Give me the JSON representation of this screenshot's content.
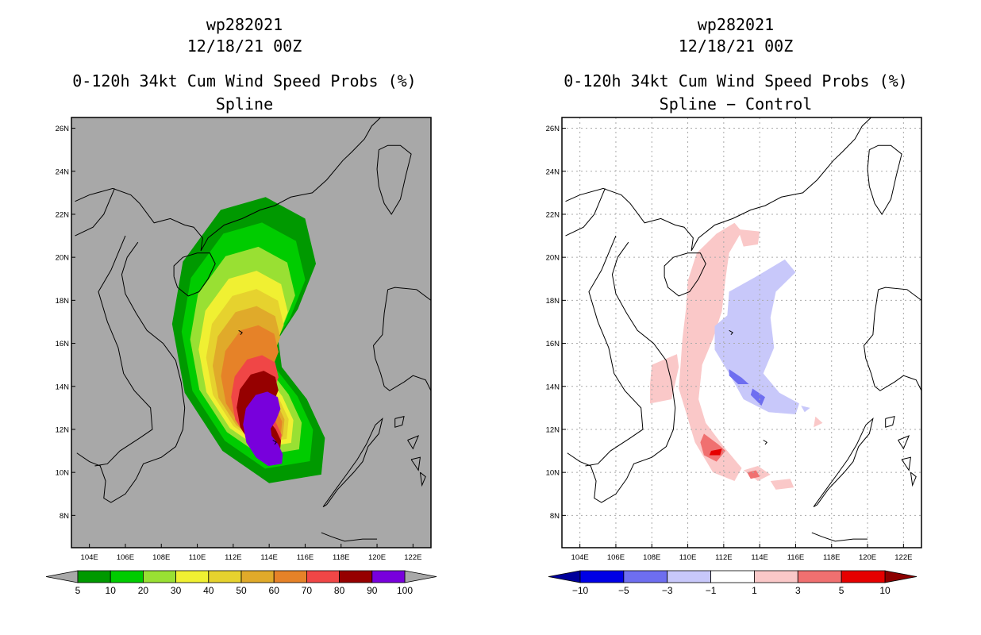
{
  "left_panel": {
    "storm_id": "wp282021",
    "datetime": "12/18/21 00Z",
    "product": "0-120h 34kt Cum Wind Speed Probs (%)",
    "subtitle": "Spline"
  },
  "right_panel": {
    "storm_id": "wp282021",
    "datetime": "12/18/21 00Z",
    "product": "0-120h 34kt Cum Wind Speed Probs (%)",
    "subtitle": "Spline − Control"
  },
  "chart_data": [
    {
      "type": "heatmap",
      "title": "0-120h 34kt Cum Wind Speed Probs (%)",
      "subtitle": "Spline",
      "background_color": "#a8a8a8",
      "xlim": [
        103,
        123
      ],
      "ylim": [
        6.5,
        26.5
      ],
      "x_ticks": [
        104,
        106,
        108,
        110,
        112,
        114,
        116,
        118,
        120,
        122
      ],
      "x_tick_labels": [
        "104E",
        "106E",
        "108E",
        "110E",
        "112E",
        "114E",
        "116E",
        "118E",
        "120E",
        "122E"
      ],
      "y_ticks": [
        8,
        10,
        12,
        14,
        16,
        18,
        20,
        22,
        24,
        26
      ],
      "y_tick_labels": [
        "8N",
        "10N",
        "12N",
        "14N",
        "16N",
        "18N",
        "20N",
        "22N",
        "24N",
        "26N"
      ],
      "grid": false,
      "colorbar": {
        "labels": [
          "5",
          "10",
          "20",
          "30",
          "40",
          "50",
          "60",
          "70",
          "80",
          "90",
          "100"
        ],
        "colors": [
          "#009900",
          "#00cc00",
          "#99e033",
          "#f0f032",
          "#e6d22e",
          "#e0aa2a",
          "#e68228",
          "#f04646",
          "#960000",
          "#7800dc"
        ],
        "left_arrow": "#a8a8a8",
        "right_arrow": "#a8a8a8"
      },
      "contours": [
        {
          "level": 5,
          "color": "#009900",
          "center": [
            113.8,
            17.2
          ],
          "scale": 1.0
        },
        {
          "level": 10,
          "color": "#00cc00",
          "center": [
            113.6,
            16.8
          ],
          "scale": 0.86
        },
        {
          "level": 20,
          "color": "#99e033",
          "center": [
            113.4,
            16.4
          ],
          "scale": 0.73
        },
        {
          "level": 30,
          "color": "#f0f032",
          "center": [
            113.3,
            15.9
          ],
          "scale": 0.62
        },
        {
          "level": 40,
          "color": "#e6d22e",
          "center": [
            113.3,
            15.5
          ],
          "scale": 0.54
        },
        {
          "level": 50,
          "color": "#e0aa2a",
          "center": [
            113.3,
            15.1
          ],
          "scale": 0.47
        },
        {
          "level": 60,
          "color": "#e68228",
          "center": [
            113.4,
            14.6
          ],
          "scale": 0.4
        },
        {
          "level": 70,
          "color": "#f04646",
          "center": [
            113.6,
            13.6
          ],
          "scale": 0.33
        },
        {
          "level": 80,
          "color": "#960000",
          "center": [
            113.7,
            13.1
          ],
          "scale": 0.29
        },
        {
          "level": 90,
          "color": "#7800dc",
          "center": [
            113.9,
            12.3
          ],
          "scale": 0.26
        }
      ]
    },
    {
      "type": "heatmap",
      "title": "0-120h 34kt Cum Wind Speed Probs (%)",
      "subtitle": "Spline − Control",
      "background_color": "#ffffff",
      "xlim": [
        103,
        123
      ],
      "ylim": [
        6.5,
        26.5
      ],
      "x_ticks": [
        104,
        106,
        108,
        110,
        112,
        114,
        116,
        118,
        120,
        122
      ],
      "x_tick_labels": [
        "104E",
        "106E",
        "108E",
        "110E",
        "112E",
        "114E",
        "116E",
        "118E",
        "120E",
        "122E"
      ],
      "y_ticks": [
        8,
        10,
        12,
        14,
        16,
        18,
        20,
        22,
        24,
        26
      ],
      "y_tick_labels": [
        "8N",
        "10N",
        "12N",
        "14N",
        "16N",
        "18N",
        "20N",
        "22N",
        "24N",
        "26N"
      ],
      "grid": true,
      "colorbar": {
        "labels": [
          "−10",
          "−5",
          "−3",
          "−1",
          "1",
          "3",
          "5",
          "10"
        ],
        "colors": [
          "#0000e6",
          "#6e6ef0",
          "#c8c8fa",
          "#ffffff",
          "#fac8c8",
          "#f07070",
          "#e60000"
        ],
        "left_arrow": "#00009b",
        "right_arrow": "#8c0000"
      },
      "contours": [
        {
          "level": 1,
          "color": "#fac8c8",
          "points": [
            [
              110.5,
              20.2
            ],
            [
              111.6,
              21.1
            ],
            [
              112.6,
              21.6
            ],
            [
              113.0,
              21.2
            ],
            [
              112.3,
              20.2
            ],
            [
              112.1,
              19.0
            ],
            [
              111.9,
              17.5
            ],
            [
              111.4,
              16.2
            ],
            [
              110.8,
              15.0
            ],
            [
              110.6,
              13.4
            ],
            [
              111.0,
              12.3
            ],
            [
              112.0,
              11.2
            ],
            [
              113.0,
              10.2
            ],
            [
              112.6,
              9.6
            ],
            [
              111.4,
              10.0
            ],
            [
              110.4,
              11.4
            ],
            [
              109.9,
              12.8
            ],
            [
              109.5,
              13.9
            ],
            [
              109.6,
              15.0
            ],
            [
              109.7,
              16.2
            ],
            [
              109.9,
              17.6
            ],
            [
              110.0,
              18.9
            ]
          ]
        },
        {
          "level": 1,
          "color": "#fac8c8",
          "points": [
            [
              112.8,
              21.3
            ],
            [
              114.0,
              21.2
            ],
            [
              113.9,
              20.6
            ],
            [
              113.1,
              20.5
            ]
          ]
        },
        {
          "level": 1,
          "color": "#fac8c8",
          "points": [
            [
              107.9,
              13.2
            ],
            [
              109.1,
              13.4
            ],
            [
              109.5,
              14.9
            ],
            [
              109.4,
              15.5
            ],
            [
              108.0,
              15.0
            ],
            [
              107.9,
              14.1
            ]
          ]
        },
        {
          "level": 1,
          "color": "#fac8c8",
          "points": [
            [
              113.1,
              10.1
            ],
            [
              113.9,
              10.3
            ],
            [
              114.6,
              9.9
            ],
            [
              113.9,
              9.6
            ]
          ]
        },
        {
          "level": 1,
          "color": "#fac8c8",
          "points": [
            [
              114.6,
              9.6
            ],
            [
              115.7,
              9.7
            ],
            [
              115.9,
              9.3
            ],
            [
              114.9,
              9.2
            ]
          ]
        },
        {
          "level": 1,
          "color": "#fac8c8",
          "points": [
            [
              117.1,
              12.6
            ],
            [
              117.5,
              12.3
            ],
            [
              117.0,
              12.1
            ]
          ]
        },
        {
          "level": 3,
          "color": "#f07070",
          "points": [
            [
              110.9,
              11.8
            ],
            [
              111.7,
              11.3
            ],
            [
              112.1,
              11.0
            ],
            [
              111.6,
              10.5
            ],
            [
              110.9,
              10.8
            ],
            [
              110.7,
              11.4
            ]
          ]
        },
        {
          "level": 3,
          "color": "#f07070",
          "points": [
            [
              113.3,
              10.0
            ],
            [
              113.8,
              10.1
            ],
            [
              114.0,
              9.8
            ],
            [
              113.5,
              9.7
            ]
          ]
        },
        {
          "level": 5,
          "color": "#e60000",
          "points": [
            [
              111.3,
              11.0
            ],
            [
              111.9,
              11.1
            ],
            [
              111.8,
              10.8
            ],
            [
              111.2,
              10.8
            ]
          ]
        },
        {
          "level": -1,
          "color": "#c8c8fa",
          "points": [
            [
              112.3,
              18.4
            ],
            [
              113.8,
              19.1
            ],
            [
              115.4,
              19.9
            ],
            [
              116.0,
              19.3
            ],
            [
              114.9,
              18.4
            ],
            [
              114.6,
              17.2
            ],
            [
              114.8,
              15.8
            ],
            [
              114.2,
              14.6
            ],
            [
              115.1,
              13.7
            ],
            [
              116.2,
              13.2
            ],
            [
              116.0,
              12.7
            ],
            [
              114.5,
              12.8
            ],
            [
              113.1,
              13.4
            ],
            [
              112.3,
              14.6
            ],
            [
              111.5,
              15.7
            ],
            [
              111.5,
              16.8
            ],
            [
              112.2,
              17.3
            ]
          ]
        },
        {
          "level": -1,
          "color": "#c8c8fa",
          "points": [
            [
              116.3,
              13.1
            ],
            [
              116.8,
              13.0
            ],
            [
              116.5,
              12.8
            ]
          ]
        },
        {
          "level": -3,
          "color": "#6e6ef0",
          "points": [
            [
              112.3,
              14.8
            ],
            [
              113.0,
              14.4
            ],
            [
              113.4,
              14.1
            ],
            [
              112.8,
              14.1
            ],
            [
              112.3,
              14.5
            ]
          ]
        },
        {
          "level": -3,
          "color": "#6e6ef0",
          "points": [
            [
              113.6,
              13.9
            ],
            [
              114.3,
              13.5
            ],
            [
              114.1,
              13.1
            ],
            [
              113.5,
              13.6
            ]
          ]
        }
      ]
    }
  ]
}
